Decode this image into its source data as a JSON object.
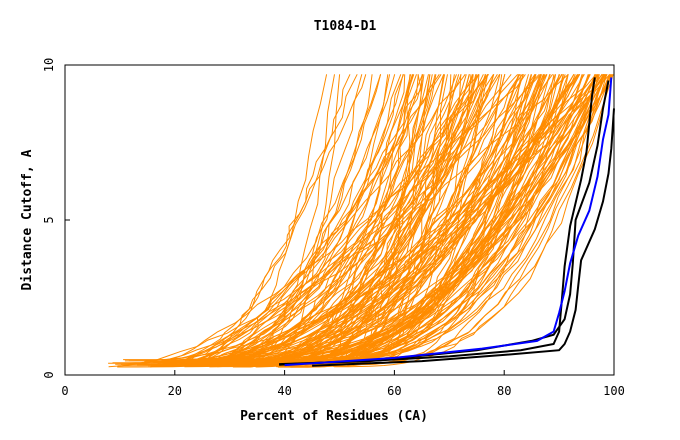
{
  "chart_data": {
    "type": "line",
    "title": "T1084-D1",
    "xlabel": "Percent of Residues (CA)",
    "ylabel": "Distance Cutoff, A",
    "xlim": [
      0,
      100
    ],
    "ylim": [
      0,
      10
    ],
    "x_ticks": [
      "0",
      "20",
      "40",
      "60",
      "80",
      "100"
    ],
    "y_ticks": [
      "0",
      "5",
      "10"
    ],
    "grid": false,
    "legend": "none",
    "colors": {
      "other": "#ff8c00",
      "black": "#000000",
      "blue": "#0000ff",
      "frame": "#000000"
    },
    "highlighted_series": [
      {
        "color": "black",
        "points": [
          [
            39,
            0.35
          ],
          [
            55,
            0.45
          ],
          [
            70,
            0.6
          ],
          [
            83,
            0.8
          ],
          [
            89,
            1.0
          ],
          [
            90,
            1.4
          ],
          [
            90.5,
            2.4
          ],
          [
            91,
            3.5
          ],
          [
            92,
            4.8
          ],
          [
            94,
            6.3
          ],
          [
            95,
            7.2
          ],
          [
            96,
            9.0
          ],
          [
            96.5,
            9.6
          ]
        ]
      },
      {
        "color": "black",
        "points": [
          [
            39,
            0.33
          ],
          [
            58,
            0.5
          ],
          [
            75,
            0.8
          ],
          [
            85,
            1.1
          ],
          [
            89,
            1.3
          ],
          [
            91,
            1.8
          ],
          [
            92,
            2.6
          ],
          [
            92.5,
            3.6
          ],
          [
            93,
            5.0
          ],
          [
            95.5,
            6.2
          ],
          [
            97,
            7.4
          ],
          [
            98,
            8.6
          ],
          [
            99,
            9.5
          ]
        ]
      },
      {
        "color": "black",
        "points": [
          [
            45,
            0.3
          ],
          [
            65,
            0.45
          ],
          [
            80,
            0.65
          ],
          [
            90,
            0.8
          ],
          [
            91,
            1.0
          ],
          [
            92,
            1.4
          ],
          [
            93,
            2.1
          ],
          [
            93.5,
            2.9
          ],
          [
            94,
            3.7
          ],
          [
            96.5,
            4.7
          ],
          [
            98,
            5.6
          ],
          [
            99,
            6.5
          ],
          [
            99.5,
            7.3
          ],
          [
            100,
            8.6
          ]
        ]
      },
      {
        "color": "blue",
        "points": [
          [
            40,
            0.32
          ],
          [
            60,
            0.55
          ],
          [
            76,
            0.85
          ],
          [
            86,
            1.1
          ],
          [
            89,
            1.4
          ],
          [
            90,
            2.0
          ],
          [
            91,
            2.7
          ],
          [
            92,
            3.6
          ],
          [
            93.5,
            4.5
          ],
          [
            95.5,
            5.3
          ],
          [
            97,
            6.4
          ],
          [
            98,
            7.6
          ],
          [
            99,
            8.4
          ],
          [
            99.5,
            9.6
          ]
        ]
      }
    ]
  }
}
